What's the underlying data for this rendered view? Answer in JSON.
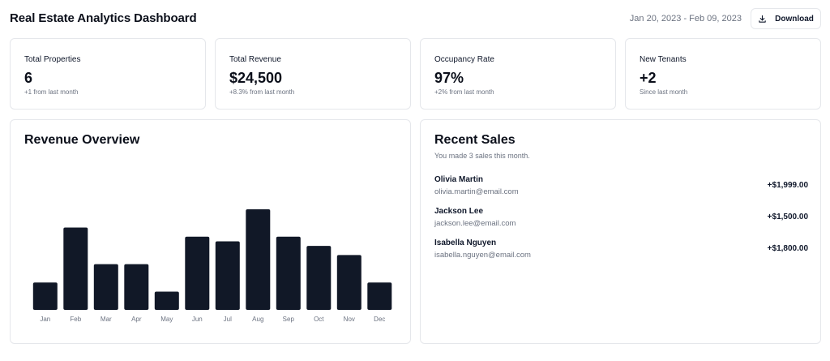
{
  "header": {
    "title": "Real Estate Analytics Dashboard",
    "date_range": "Jan 20, 2023 - Feb 09, 2023",
    "download_label": "Download"
  },
  "stats": [
    {
      "label": "Total Properties",
      "value": "6",
      "sub": "+1 from last month"
    },
    {
      "label": "Total Revenue",
      "value": "$24,500",
      "sub": "+8.3% from last month"
    },
    {
      "label": "Occupancy Rate",
      "value": "97%",
      "sub": "+2% from last month"
    },
    {
      "label": "New Tenants",
      "value": "+2",
      "sub": "Since last month"
    }
  ],
  "revenue": {
    "title": "Revenue Overview"
  },
  "chart_data": {
    "type": "bar",
    "title": "Revenue Overview",
    "categories": [
      "Jan",
      "Feb",
      "Mar",
      "Apr",
      "May",
      "Jun",
      "Jul",
      "Aug",
      "Sep",
      "Oct",
      "Nov",
      "Dec"
    ],
    "values": [
      3,
      9,
      5,
      5,
      2,
      8,
      7.5,
      11,
      8,
      7,
      6,
      3
    ],
    "ylim": [
      0,
      11
    ],
    "grid": false,
    "legend": "none",
    "bar_color": "#111827"
  },
  "sales": {
    "title": "Recent Sales",
    "subtitle": "You made 3 sales this month.",
    "items": [
      {
        "name": "Olivia Martin",
        "email": "olivia.martin@email.com",
        "amount": "+$1,999.00"
      },
      {
        "name": "Jackson Lee",
        "email": "jackson.lee@email.com",
        "amount": "+$1,500.00"
      },
      {
        "name": "Isabella Nguyen",
        "email": "isabella.nguyen@email.com",
        "amount": "+$1,800.00"
      }
    ]
  }
}
